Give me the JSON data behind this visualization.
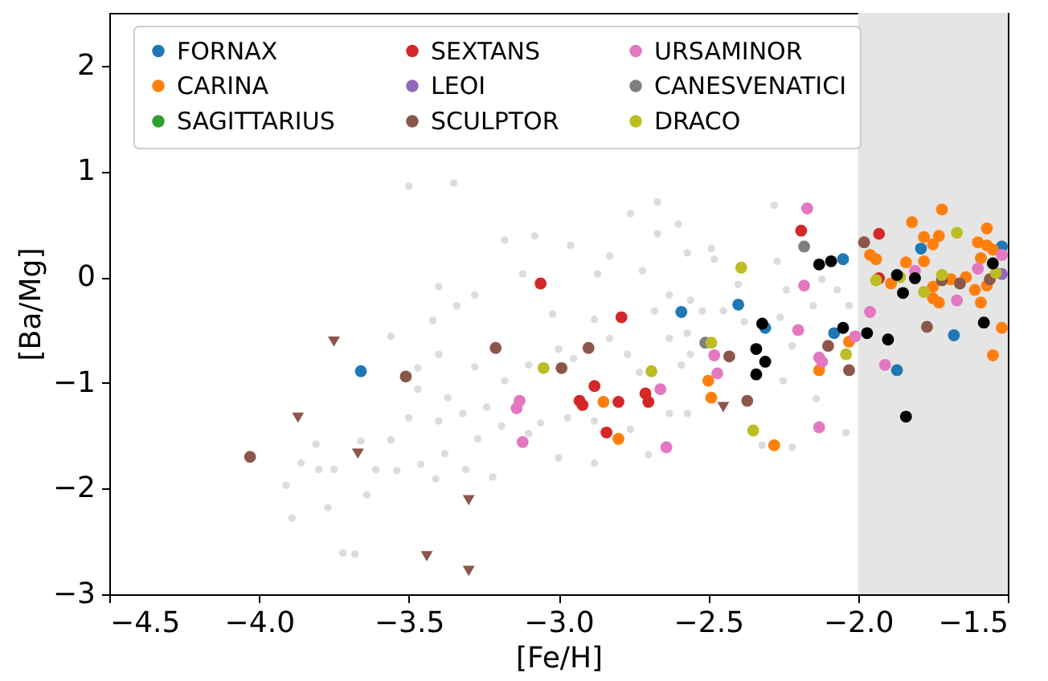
{
  "chart_data": {
    "type": "scatter",
    "xlabel": "[Fe/H]",
    "ylabel": "[Ba/Mg]",
    "xlim": [
      -4.5,
      -1.5
    ],
    "ylim": [
      -3,
      2.5
    ],
    "xticks": [
      {
        "value": -4.5,
        "label": "−4.5"
      },
      {
        "value": -4.0,
        "label": "−4.0"
      },
      {
        "value": -3.5,
        "label": "−3.5"
      },
      {
        "value": -3.0,
        "label": "−3.0"
      },
      {
        "value": -2.5,
        "label": "−2.5"
      },
      {
        "value": -2.0,
        "label": "−2.0"
      },
      {
        "value": -1.5,
        "label": "−1.5"
      }
    ],
    "yticks": [
      {
        "value": -3,
        "label": "−3"
      },
      {
        "value": -2,
        "label": "−2"
      },
      {
        "value": -1,
        "label": "−1"
      },
      0,
      1,
      2
    ],
    "grid": false,
    "legend": "top",
    "marker": "circle",
    "bands": [
      {
        "axis": "x",
        "from": -2.0,
        "to": -1.5,
        "color": "#e5e5e5"
      }
    ],
    "series": [
      {
        "color": "#dcdcdc",
        "x": [
          -3.4,
          -3.42,
          -3.56,
          -3.47,
          -3.47,
          -3.5,
          -3.56,
          -3.66,
          -3.81,
          -3.86,
          -3.91,
          -3.89,
          -3.77,
          -3.8,
          -3.75,
          -3.61,
          -3.64,
          -3.72,
          -3.68,
          -3.54,
          -3.46,
          -3.41,
          -3.4,
          -3.37,
          -3.35,
          -3.18,
          -3.08,
          -2.96,
          -2.76,
          -2.67,
          -2.67,
          -2.6,
          -2.57,
          -2.49,
          -2.87,
          -2.83,
          -2.72,
          -3.12,
          -3.28,
          -3.34,
          -3.02,
          -2.88,
          -2.68,
          -2.63,
          -2.56,
          -2.52,
          -3.4,
          -3.28,
          -3.18,
          -3.1,
          -3.0,
          -2.95,
          -2.83,
          -2.77,
          -2.63,
          -2.57,
          -2.56,
          -2.59,
          -2.73,
          -3.32,
          -3.24,
          -3.19,
          -3.06,
          -2.97,
          -2.88,
          -2.76,
          -2.63,
          -2.57,
          -3.27,
          -3.38,
          -3.31,
          -3.22,
          -3.0,
          -2.88,
          -2.7,
          -3.1,
          -2.28,
          -2.48,
          -2.27,
          -2.12,
          -2.07,
          -2.4,
          -2.24,
          -2.45,
          -2.38,
          -2.26,
          -2.15,
          -2.03,
          -2.22,
          -2.25,
          -2.14,
          -2.04,
          -2.22,
          -2.32,
          -1.72,
          -3.5
        ],
        "values": [
          -0.09,
          -0.41,
          -0.56,
          -0.86,
          -1.06,
          -1.33,
          -1.54,
          -1.55,
          -1.58,
          -1.76,
          -1.97,
          -2.28,
          -2.18,
          -1.82,
          -1.82,
          -1.82,
          -2.06,
          -2.61,
          -2.62,
          -1.83,
          -1.77,
          -1.91,
          -1.36,
          -1.14,
          0.89,
          0.35,
          0.39,
          0.3,
          0.6,
          0.71,
          0.41,
          0.5,
          0.23,
          0.27,
          0.03,
          0.2,
          0.06,
          0.03,
          -0.17,
          -0.27,
          -0.35,
          -0.4,
          -0.32,
          -0.17,
          -0.22,
          -0.32,
          -0.73,
          -0.85,
          -0.98,
          -0.83,
          -0.68,
          -0.77,
          -0.58,
          -0.73,
          -0.58,
          -0.53,
          -0.73,
          -0.83,
          -0.9,
          -1.29,
          -1.23,
          -1.41,
          -1.38,
          -1.33,
          -1.36,
          -1.44,
          -1.29,
          -1.29,
          -1.53,
          -1.67,
          -1.82,
          -1.89,
          -1.71,
          -1.76,
          -1.68,
          -1.48,
          0.68,
          0.17,
          0.15,
          -0.02,
          -0.12,
          -0.07,
          -0.12,
          -0.32,
          -0.42,
          -0.38,
          -0.27,
          -0.27,
          -0.65,
          -0.98,
          -1.15,
          -1.47,
          -1.61,
          -1.59,
          -0.27,
          0.86
        ]
      },
      {
        "name": "FORNAX",
        "color": "#1f77b4",
        "x": [
          -3.66,
          -2.59,
          -2.4,
          -2.31,
          -2.05,
          -2.08,
          -1.79,
          -1.68,
          -1.87,
          -1.52
        ],
        "values": [
          -0.89,
          -0.33,
          -0.26,
          -0.48,
          0.17,
          -0.53,
          0.27,
          -0.55,
          -0.88,
          0.29
        ]
      },
      {
        "name": "CARINA",
        "color": "#ff7f0e",
        "x": [
          -2.85,
          -2.8,
          -2.5,
          -2.49,
          -2.28,
          -2.13,
          -2.03,
          -1.72,
          -1.82,
          -1.78,
          -1.73,
          -1.75,
          -1.96,
          -1.94,
          -1.84,
          -1.78,
          -1.57,
          -1.6,
          -1.57,
          -1.55,
          -1.59,
          -1.89,
          -1.75,
          -1.69,
          -1.64,
          -1.75,
          -1.73,
          -1.61,
          -1.59,
          -1.57,
          -1.52,
          -1.55
        ],
        "values": [
          -1.18,
          -1.53,
          -0.98,
          -1.14,
          -1.59,
          -0.88,
          -0.61,
          0.64,
          0.52,
          0.38,
          0.39,
          0.31,
          0.21,
          0.17,
          0.14,
          0.15,
          0.46,
          0.33,
          0.3,
          0.26,
          0.18,
          -0.06,
          -0.09,
          -0.02,
          0.0,
          -0.2,
          -0.24,
          -0.12,
          -0.24,
          -0.08,
          -0.48,
          -0.74
        ]
      },
      {
        "name": "SAGITTARIUS",
        "color": "#2ca02c"
      },
      {
        "name": "SEXTANS",
        "color": "#d62728",
        "x": [
          -3.06,
          -2.79,
          -2.88,
          -2.93,
          -2.92,
          -2.8,
          -2.71,
          -2.7,
          -2.84,
          -2.19,
          -1.93,
          -1.93
        ],
        "values": [
          -0.06,
          -0.38,
          -1.03,
          -1.17,
          -1.21,
          -1.18,
          -1.1,
          -1.18,
          -1.47,
          0.44,
          0.41,
          -0.01
        ]
      },
      {
        "name": "LEOI",
        "color": "#9467bd",
        "x": [
          -1.52
        ],
        "values": [
          0.03
        ]
      },
      {
        "name": "SCULPTOR",
        "color": "#8c564b",
        "x": [
          -4.03,
          -3.51,
          -3.21,
          -2.9,
          -2.99,
          -2.43,
          -2.37,
          -2.1,
          -2.03,
          -1.98,
          -1.77,
          -1.66,
          -1.72,
          -1.56
        ],
        "values": [
          -1.7,
          -0.94,
          -0.67,
          -0.67,
          -0.86,
          -0.75,
          -1.17,
          -0.65,
          -0.88,
          0.33,
          -0.47,
          -0.06,
          -0.03,
          -0.02
        ]
      },
      {
        "name": "URSAMINOR",
        "color": "#e377c2",
        "x": [
          -3.13,
          -3.14,
          -3.12,
          -2.66,
          -2.64,
          -2.48,
          -2.47,
          -2.17,
          -2.18,
          -2.2,
          -2.13,
          -2.12,
          -2.13,
          -2.01,
          -1.96,
          -1.91,
          -1.81,
          -1.67,
          -1.6,
          -1.52
        ],
        "values": [
          -1.17,
          -1.24,
          -1.56,
          -1.06,
          -1.61,
          -0.74,
          -0.91,
          0.65,
          -0.08,
          -0.5,
          -0.76,
          -0.8,
          -1.42,
          -0.56,
          -0.33,
          -0.83,
          0.06,
          -0.22,
          0.08,
          0.21
        ]
      },
      {
        "name": "CANESVENATICI",
        "color": "#7f7f7f",
        "x": [
          -2.18,
          -2.51
        ],
        "values": [
          0.29,
          -0.62
        ]
      },
      {
        "name": "DRACO",
        "color": "#bcbd22",
        "x": [
          -3.05,
          -2.69,
          -2.49,
          -2.39,
          -2.35,
          -2.04,
          -1.94,
          -1.86,
          -1.78,
          -1.72,
          -1.67,
          -1.54
        ],
        "values": [
          -0.86,
          -0.89,
          -0.62,
          0.09,
          -1.45,
          -0.73,
          -0.03,
          0.0,
          -0.14,
          0.02,
          0.42,
          0.04
        ]
      },
      {
        "color": "#000000",
        "x": [
          -2.13,
          -2.09,
          -2.32,
          -2.34,
          -2.31,
          -2.34,
          -2.05,
          -1.97,
          -1.9,
          -1.85,
          -1.87,
          -1.81,
          -1.58,
          -1.55,
          -1.84
        ],
        "values": [
          0.12,
          0.15,
          -0.44,
          -0.68,
          -0.8,
          -0.92,
          -0.48,
          -0.53,
          -0.59,
          -0.15,
          0.02,
          -0.01,
          -0.43,
          0.13,
          -1.32
        ]
      },
      {
        "color": "#8c564b",
        "marker": "triangle",
        "x": [
          -3.75,
          -3.87,
          -3.67,
          -3.44,
          -3.3,
          -3.3,
          -2.45
        ],
        "values": [
          -0.61,
          -1.33,
          -1.67,
          -2.64,
          -2.11,
          -2.78,
          -1.23
        ]
      }
    ]
  }
}
